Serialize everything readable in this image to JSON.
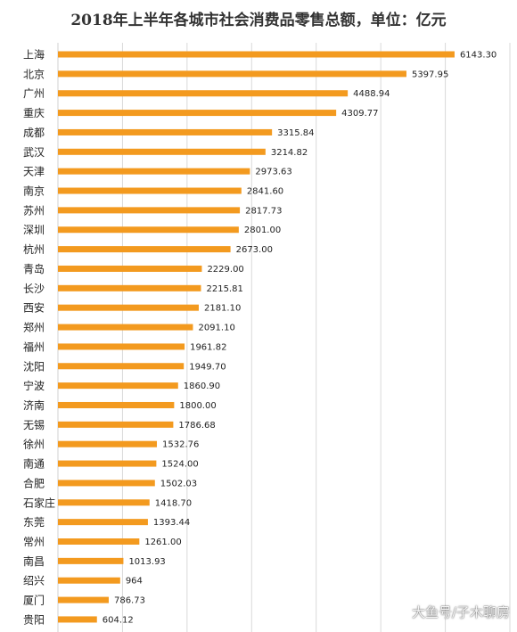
{
  "chart_data": {
    "type": "bar",
    "orientation": "horizontal",
    "title": "2018年上半年各城市社会消费品零售总额，单位：亿元",
    "categories": [
      "上海",
      "北京",
      "广州",
      "重庆",
      "成都",
      "武汉",
      "天津",
      "南京",
      "苏州",
      "深圳",
      "杭州",
      "青岛",
      "长沙",
      "西安",
      "郑州",
      "福州",
      "沈阳",
      "宁波",
      "济南",
      "无锡",
      "徐州",
      "南通",
      "合肥",
      "石家庄",
      "东莞",
      "常州",
      "南昌",
      "绍兴",
      "厦门",
      "贵阳"
    ],
    "values": [
      6143.3,
      5397.95,
      4488.94,
      4309.77,
      3315.84,
      3214.82,
      2973.63,
      2841.6,
      2817.73,
      2801.0,
      2673.0,
      2229.0,
      2215.81,
      2181.1,
      2091.1,
      1961.82,
      1949.7,
      1860.9,
      1800.0,
      1786.68,
      1532.76,
      1524.0,
      1502.03,
      1418.7,
      1393.44,
      1261.0,
      1013.93,
      964,
      786.73,
      604.12
    ],
    "value_labels": [
      "6143.30",
      "5397.95",
      "4488.94",
      "4309.77",
      "3315.84",
      "3214.82",
      "2973.63",
      "2841.60",
      "2817.73",
      "2801.00",
      "2673.00",
      "2229.00",
      "2215.81",
      "2181.10",
      "2091.10",
      "1961.82",
      "1949.70",
      "1860.90",
      "1800.00",
      "1786.68",
      "1532.76",
      "1524.00",
      "1502.03",
      "1418.70",
      "1393.44",
      "1261.00",
      "1013.93",
      "964",
      "786.73",
      "604.12"
    ],
    "xlim": [
      0,
      7000
    ],
    "grid": true,
    "legend": "none",
    "bar_color": "#f39a1f",
    "grid_color": "#d9d9d9"
  },
  "watermark": "大鱼号/子木聊房"
}
